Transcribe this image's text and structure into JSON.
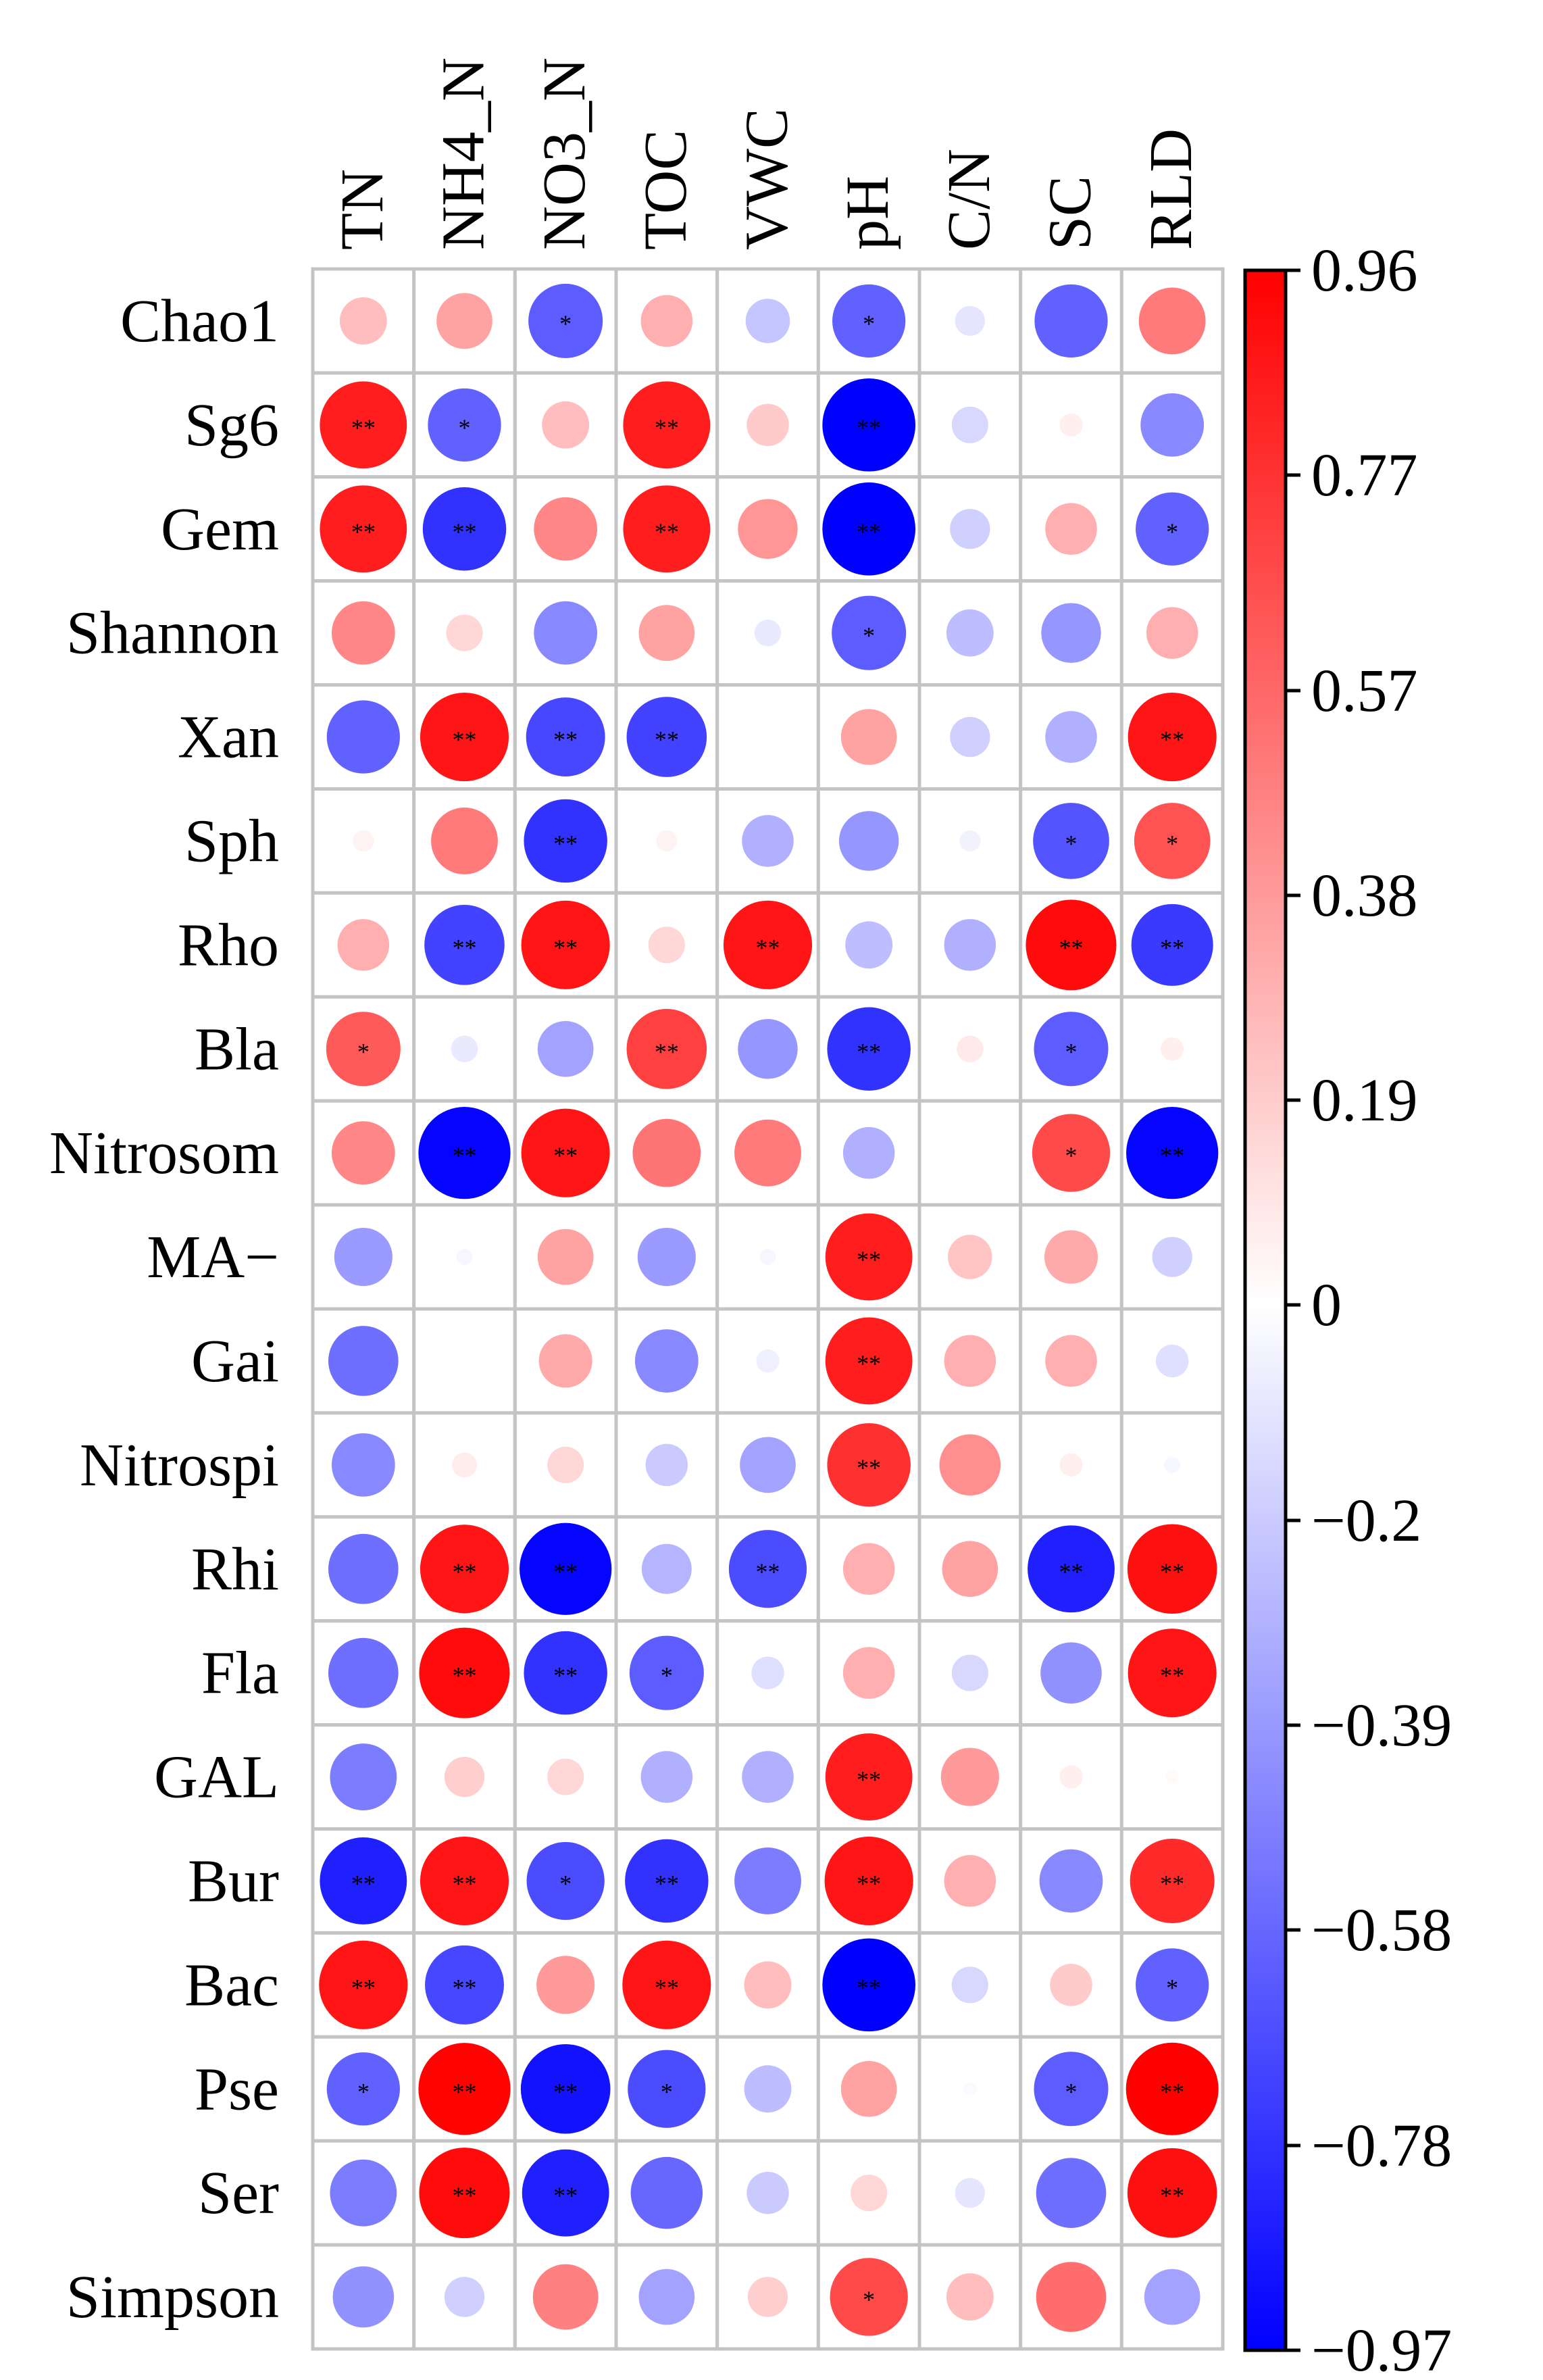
{
  "chart_data": {
    "type": "heatmap",
    "style": "circle-correlation-matrix",
    "columns": [
      "TN",
      "NH4_N",
      "NO3_N",
      "TOC",
      "VWC",
      "pH",
      "C/N",
      "SC",
      "RLD"
    ],
    "rows": [
      "Chao1",
      "Sg6",
      "Gem",
      "Shannon",
      "Xan",
      "Sph",
      "Rho",
      "Bla",
      "Nitrosom",
      "MA−",
      "Gai",
      "Nitrospi",
      "Rhi",
      "Fla",
      "GAL",
      "Bur",
      "Bac",
      "Pse",
      "Ser",
      "Simpson"
    ],
    "values": [
      [
        0.25,
        0.35,
        -0.62,
        0.3,
        -0.22,
        -0.6,
        -0.1,
        -0.6,
        0.5
      ],
      [
        0.85,
        -0.6,
        0.25,
        0.85,
        0.2,
        -0.97,
        -0.15,
        0.06,
        -0.45
      ],
      [
        0.85,
        -0.78,
        0.45,
        0.85,
        0.4,
        -0.97,
        -0.18,
        0.3,
        -0.6
      ],
      [
        0.45,
        0.15,
        -0.45,
        0.35,
        -0.08,
        -0.62,
        -0.25,
        -0.4,
        0.3
      ],
      [
        -0.6,
        0.88,
        -0.7,
        -0.72,
        0.0,
        0.35,
        -0.18,
        -0.3,
        0.88
      ],
      [
        0.05,
        0.5,
        -0.78,
        0.05,
        -0.3,
        -0.4,
        -0.05,
        -0.65,
        0.65
      ],
      [
        0.3,
        -0.72,
        0.88,
        0.15,
        0.88,
        -0.25,
        -0.3,
        0.92,
        -0.75
      ],
      [
        0.62,
        -0.08,
        -0.35,
        0.72,
        -0.4,
        -0.78,
        0.08,
        -0.62,
        0.06
      ],
      [
        0.45,
        -0.95,
        0.88,
        0.52,
        0.5,
        -0.3,
        0.0,
        0.68,
        -0.95
      ],
      [
        -0.38,
        -0.03,
        0.35,
        -0.38,
        -0.03,
        0.85,
        0.22,
        0.32,
        -0.18
      ],
      [
        -0.55,
        0.0,
        0.32,
        -0.45,
        -0.06,
        0.85,
        0.3,
        0.3,
        -0.12
      ],
      [
        -0.45,
        0.07,
        0.15,
        -0.2,
        -0.35,
        0.78,
        0.42,
        0.06,
        -0.03
      ],
      [
        -0.55,
        0.88,
        -0.95,
        -0.28,
        -0.68,
        0.3,
        0.35,
        -0.85,
        0.9
      ],
      [
        -0.55,
        0.92,
        -0.78,
        -0.62,
        -0.12,
        0.3,
        -0.15,
        -0.42,
        0.88
      ],
      [
        -0.5,
        0.18,
        0.15,
        -0.3,
        -0.3,
        0.85,
        0.38,
        0.06,
        0.02
      ],
      [
        -0.85,
        0.88,
        -0.68,
        -0.78,
        -0.5,
        0.88,
        0.3,
        -0.45,
        0.8
      ],
      [
        0.88,
        -0.7,
        0.38,
        0.88,
        0.25,
        -0.97,
        -0.15,
        0.2,
        -0.6
      ],
      [
        -0.6,
        0.95,
        -0.9,
        -0.68,
        -0.25,
        0.35,
        -0.02,
        -0.62,
        0.96
      ],
      [
        -0.5,
        0.92,
        -0.85,
        -0.58,
        -0.2,
        0.15,
        -0.1,
        -0.55,
        0.9
      ],
      [
        -0.42,
        -0.18,
        0.48,
        -0.35,
        0.18,
        0.68,
        0.25,
        0.55,
        -0.35
      ]
    ],
    "significance": [
      [
        "",
        "",
        "*",
        "",
        "",
        "*",
        "",
        "",
        ""
      ],
      [
        "**",
        "*",
        "",
        "**",
        "",
        "**",
        "",
        "",
        ""
      ],
      [
        "**",
        "**",
        "",
        "**",
        "",
        "**",
        "",
        "",
        "*"
      ],
      [
        "",
        "",
        "",
        "",
        "",
        "*",
        "",
        "",
        ""
      ],
      [
        "",
        "**",
        "**",
        "**",
        "",
        "",
        "",
        "",
        "**"
      ],
      [
        "",
        "",
        "**",
        "",
        "",
        "",
        "",
        "*",
        "*"
      ],
      [
        "",
        "**",
        "**",
        "",
        "**",
        "",
        "",
        "**",
        "**"
      ],
      [
        "*",
        "",
        "",
        "**",
        "",
        "**",
        "",
        "*",
        ""
      ],
      [
        "",
        "**",
        "**",
        "",
        "",
        "",
        "",
        "*",
        "**"
      ],
      [
        "",
        "",
        "",
        "",
        "",
        "**",
        "",
        "",
        ""
      ],
      [
        "",
        "",
        "",
        "",
        "",
        "**",
        "",
        "",
        ""
      ],
      [
        "",
        "",
        "",
        "",
        "",
        "**",
        "",
        "",
        ""
      ],
      [
        "",
        "**",
        "**",
        "",
        "**",
        "",
        "",
        "**",
        "**"
      ],
      [
        "",
        "**",
        "**",
        "*",
        "",
        "",
        "",
        "",
        "**"
      ],
      [
        "",
        "",
        "",
        "",
        "",
        "**",
        "",
        "",
        ""
      ],
      [
        "**",
        "**",
        "*",
        "**",
        "",
        "**",
        "",
        "",
        "**"
      ],
      [
        "**",
        "**",
        "",
        "**",
        "",
        "**",
        "",
        "",
        "*"
      ],
      [
        "*",
        "**",
        "**",
        "*",
        "",
        "",
        "",
        "*",
        "**"
      ],
      [
        "",
        "**",
        "**",
        "",
        "",
        "",
        "",
        "",
        "**"
      ],
      [
        "",
        "",
        "",
        "",
        "",
        "*",
        "",
        "",
        ""
      ]
    ],
    "colorbar": {
      "range": [
        -0.97,
        0.96
      ],
      "ticks": [
        "0.96",
        "0.77",
        "0.57",
        "0.38",
        "0.19",
        "0",
        "−0.2",
        "−0.39",
        "−0.58",
        "−0.78",
        "−0.97"
      ],
      "colors": {
        "negative": "#0000ff",
        "zero": "#ffffff",
        "positive": "#ff0000"
      }
    },
    "grid": true,
    "legend": "right"
  }
}
